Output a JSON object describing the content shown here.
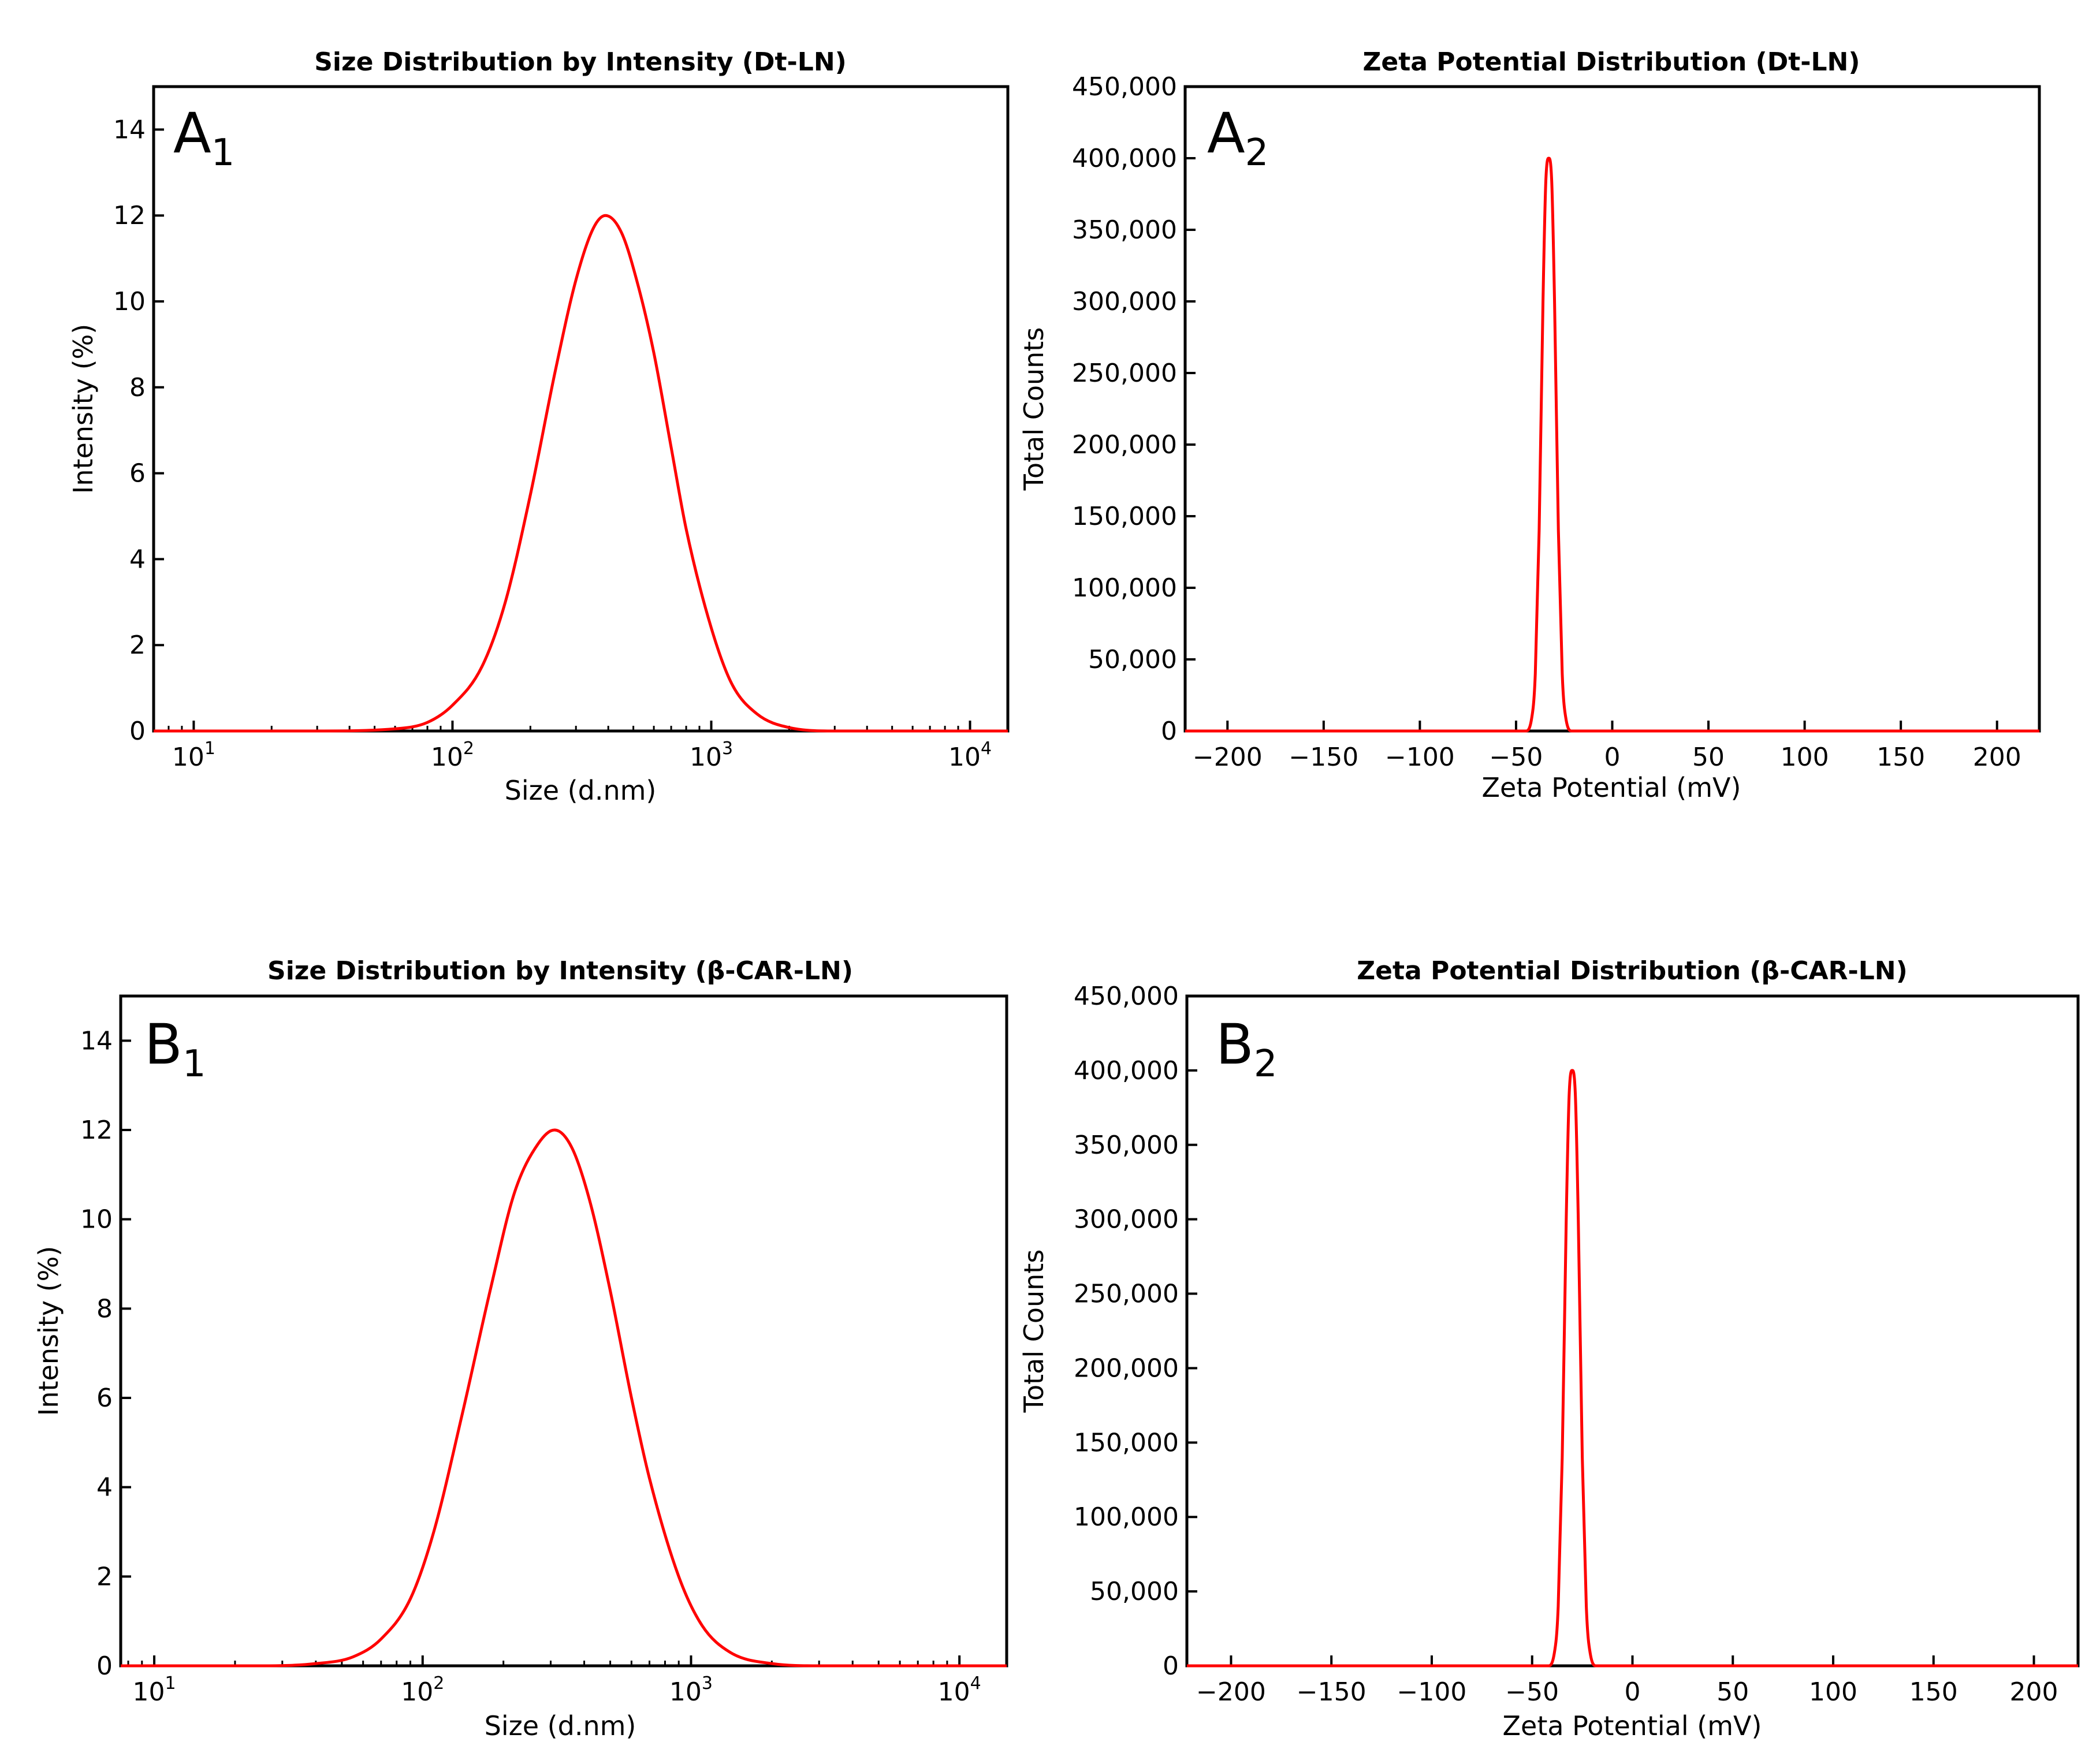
{
  "figure": {
    "colors": {
      "curve": "#ff0000",
      "axis": "#000000",
      "background": "#ffffff"
    }
  },
  "chart_data": [
    {
      "id": "A1",
      "type": "line",
      "panel_label": {
        "letter": "A",
        "subscript": "1"
      },
      "title": "Size Distribution by Intensity (Dt-LN)",
      "xlabel": "Size (d.nm)",
      "ylabel": "Intensity (%)",
      "xscale": "log",
      "xlim": [
        7,
        14000
      ],
      "ylim": [
        0,
        15
      ],
      "xticks": [
        {
          "value": 10,
          "base": "10",
          "exp": "1"
        },
        {
          "value": 100,
          "base": "10",
          "exp": "2"
        },
        {
          "value": 1000,
          "base": "10",
          "exp": "3"
        },
        {
          "value": 10000,
          "base": "10",
          "exp": "4"
        }
      ],
      "yticks": [
        {
          "value": 0,
          "label": "0"
        },
        {
          "value": 2,
          "label": "2"
        },
        {
          "value": 4,
          "label": "4"
        },
        {
          "value": 6,
          "label": "6"
        },
        {
          "value": 8,
          "label": "8"
        },
        {
          "value": 10,
          "label": "10"
        },
        {
          "value": 12,
          "label": "12"
        },
        {
          "value": 14,
          "label": "14"
        }
      ],
      "series": [
        {
          "name": "Dt-LN",
          "color": "#ff0000",
          "points": [
            [
              7,
              0
            ],
            [
              30,
              0
            ],
            [
              60,
              0.05
            ],
            [
              80,
              0.2
            ],
            [
              100,
              0.6
            ],
            [
              130,
              1.5
            ],
            [
              160,
              3.0
            ],
            [
              200,
              5.5
            ],
            [
              250,
              8.4
            ],
            [
              300,
              10.5
            ],
            [
              350,
              11.7
            ],
            [
              390,
              12.0
            ],
            [
              450,
              11.6
            ],
            [
              520,
              10.4
            ],
            [
              600,
              8.8
            ],
            [
              700,
              6.6
            ],
            [
              800,
              4.7
            ],
            [
              1000,
              2.4
            ],
            [
              1200,
              1.1
            ],
            [
              1500,
              0.4
            ],
            [
              2000,
              0.08
            ],
            [
              3000,
              0
            ],
            [
              14000,
              0
            ]
          ]
        }
      ]
    },
    {
      "id": "A2",
      "type": "line",
      "panel_label": {
        "letter": "A",
        "subscript": "2"
      },
      "title": "Zeta Potential Distribution (Dt-LN)",
      "xlabel": "Zeta Potential (mV)",
      "ylabel": "Total Counts",
      "xscale": "linear",
      "xlim": [
        -222,
        222
      ],
      "ylim": [
        0,
        450000
      ],
      "xticks": [
        {
          "value": -200,
          "label": "−200"
        },
        {
          "value": -150,
          "label": "−150"
        },
        {
          "value": -100,
          "label": "−100"
        },
        {
          "value": -50,
          "label": "−50"
        },
        {
          "value": 0,
          "label": "0"
        },
        {
          "value": 50,
          "label": "50"
        },
        {
          "value": 100,
          "label": "100"
        },
        {
          "value": 150,
          "label": "150"
        },
        {
          "value": 200,
          "label": "200"
        }
      ],
      "yticks": [
        {
          "value": 0,
          "label": "0"
        },
        {
          "value": 50000,
          "label": "50,000"
        },
        {
          "value": 100000,
          "label": "100,000"
        },
        {
          "value": 150000,
          "label": "150,000"
        },
        {
          "value": 200000,
          "label": "200,000"
        },
        {
          "value": 250000,
          "label": "250,000"
        },
        {
          "value": 300000,
          "label": "300,000"
        },
        {
          "value": 350000,
          "label": "350,000"
        },
        {
          "value": 400000,
          "label": "400,000"
        },
        {
          "value": 450000,
          "label": "450,000"
        }
      ],
      "series": [
        {
          "name": "Dt-LN",
          "color": "#ff0000",
          "points": [
            [
              -222,
              0
            ],
            [
              -45,
              0
            ],
            [
              -42,
              8000
            ],
            [
              -40,
              40000
            ],
            [
              -38,
              140000
            ],
            [
              -36,
              300000
            ],
            [
              -34.5,
              385000
            ],
            [
              -33,
              400000
            ],
            [
              -31.5,
              385000
            ],
            [
              -30,
              300000
            ],
            [
              -28,
              140000
            ],
            [
              -26,
              40000
            ],
            [
              -24,
              8000
            ],
            [
              -21,
              0
            ],
            [
              222,
              0
            ]
          ]
        }
      ]
    },
    {
      "id": "B1",
      "type": "line",
      "panel_label": {
        "letter": "B",
        "subscript": "1"
      },
      "title": "Size Distribution by Intensity (β-CAR-LN)",
      "xlabel": "Size (d.nm)",
      "ylabel": "Intensity (%)",
      "xscale": "log",
      "xlim": [
        7.5,
        15000
      ],
      "ylim": [
        0,
        15
      ],
      "xticks": [
        {
          "value": 10,
          "base": "10",
          "exp": "1"
        },
        {
          "value": 100,
          "base": "10",
          "exp": "2"
        },
        {
          "value": 1000,
          "base": "10",
          "exp": "3"
        },
        {
          "value": 10000,
          "base": "10",
          "exp": "4"
        }
      ],
      "yticks": [
        {
          "value": 0,
          "label": "0"
        },
        {
          "value": 2,
          "label": "2"
        },
        {
          "value": 4,
          "label": "4"
        },
        {
          "value": 6,
          "label": "6"
        },
        {
          "value": 8,
          "label": "8"
        },
        {
          "value": 10,
          "label": "10"
        },
        {
          "value": 12,
          "label": "12"
        },
        {
          "value": 14,
          "label": "14"
        }
      ],
      "series": [
        {
          "name": "β-CAR-LN",
          "color": "#ff0000",
          "points": [
            [
              7.5,
              0
            ],
            [
              25,
              0
            ],
            [
              40,
              0.05
            ],
            [
              55,
              0.2
            ],
            [
              70,
              0.6
            ],
            [
              90,
              1.5
            ],
            [
              110,
              3.0
            ],
            [
              140,
              5.6
            ],
            [
              180,
              8.5
            ],
            [
              220,
              10.6
            ],
            [
              270,
              11.7
            ],
            [
              310,
              12.0
            ],
            [
              360,
              11.6
            ],
            [
              420,
              10.4
            ],
            [
              500,
              8.4
            ],
            [
              600,
              6.0
            ],
            [
              700,
              4.2
            ],
            [
              900,
              2.0
            ],
            [
              1100,
              0.9
            ],
            [
              1400,
              0.3
            ],
            [
              2000,
              0.05
            ],
            [
              3000,
              0
            ],
            [
              15000,
              0
            ]
          ]
        }
      ]
    },
    {
      "id": "B2",
      "type": "line",
      "panel_label": {
        "letter": "B",
        "subscript": "2"
      },
      "title": "Zeta Potential Distribution (β-CAR-LN)",
      "xlabel": "Zeta Potential (mV)",
      "ylabel": "Total Counts",
      "xscale": "linear",
      "xlim": [
        -222,
        222
      ],
      "ylim": [
        0,
        450000
      ],
      "xticks": [
        {
          "value": -200,
          "label": "−200"
        },
        {
          "value": -150,
          "label": "−150"
        },
        {
          "value": -100,
          "label": "−100"
        },
        {
          "value": -50,
          "label": "−50"
        },
        {
          "value": 0,
          "label": "0"
        },
        {
          "value": 50,
          "label": "50"
        },
        {
          "value": 100,
          "label": "100"
        },
        {
          "value": 150,
          "label": "150"
        },
        {
          "value": 200,
          "label": "200"
        }
      ],
      "yticks": [
        {
          "value": 0,
          "label": "0"
        },
        {
          "value": 50000,
          "label": "50,000"
        },
        {
          "value": 100000,
          "label": "100,000"
        },
        {
          "value": 150000,
          "label": "150,000"
        },
        {
          "value": 200000,
          "label": "200,000"
        },
        {
          "value": 250000,
          "label": "250,000"
        },
        {
          "value": 300000,
          "label": "300,000"
        },
        {
          "value": 350000,
          "label": "350,000"
        },
        {
          "value": 400000,
          "label": "400,000"
        },
        {
          "value": 450000,
          "label": "450,000"
        }
      ],
      "series": [
        {
          "name": "β-CAR-LN",
          "color": "#ff0000",
          "points": [
            [
              -222,
              0
            ],
            [
              -42,
              0
            ],
            [
              -39,
              8000
            ],
            [
              -37,
              40000
            ],
            [
              -35,
              140000
            ],
            [
              -33,
              300000
            ],
            [
              -31.5,
              385000
            ],
            [
              -30,
              400000
            ],
            [
              -28.5,
              385000
            ],
            [
              -27,
              300000
            ],
            [
              -25,
              140000
            ],
            [
              -23,
              40000
            ],
            [
              -21,
              8000
            ],
            [
              -18,
              0
            ],
            [
              222,
              0
            ]
          ]
        }
      ]
    }
  ]
}
